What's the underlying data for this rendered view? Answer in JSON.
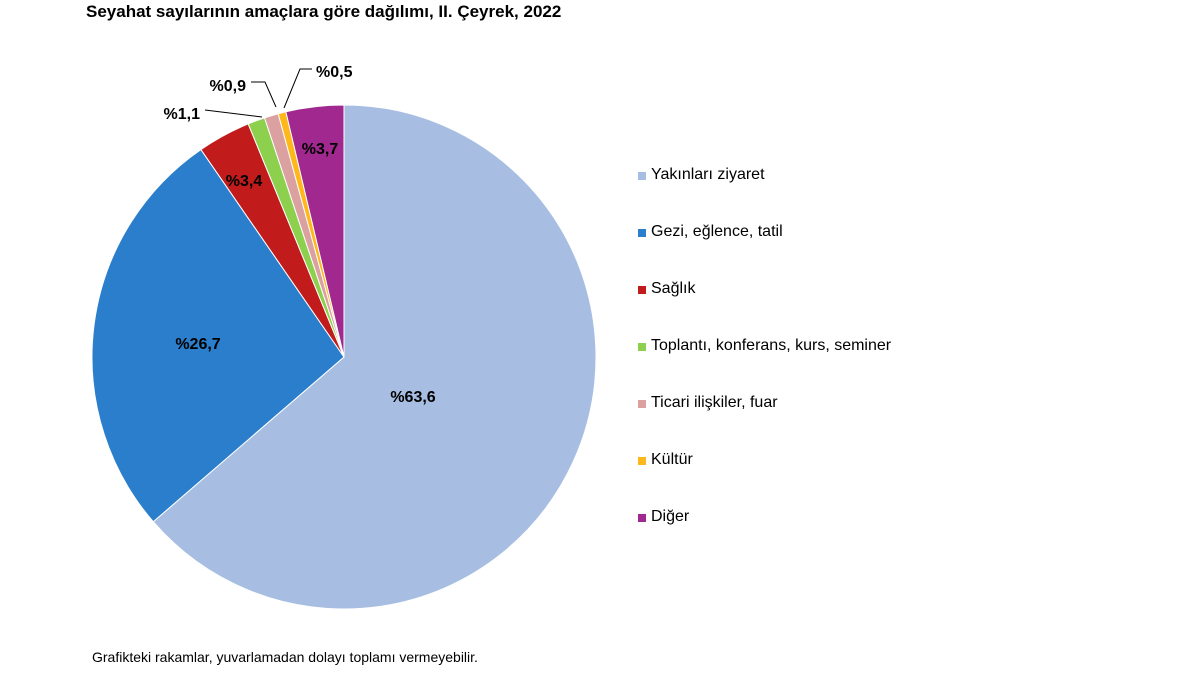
{
  "chart_data": {
    "type": "pie",
    "title": "Seyahat sayılarının amaçlara göre dağılımı, II. Çeyrek, 2022",
    "slices": [
      {
        "name": "Yakınları ziyaret",
        "value": 63.6,
        "label": "%63,6",
        "color": "#A7BEE2"
      },
      {
        "name": "Gezi, eğlence, tatil",
        "value": 26.7,
        "label": "%26,7",
        "color": "#2B7ECB"
      },
      {
        "name": "Sağlık",
        "value": 3.4,
        "label": "%3,4",
        "color": "#C21B1B"
      },
      {
        "name": "Toplantı, konferans, kurs, seminer",
        "value": 1.1,
        "label": "%1,1",
        "color": "#8CD04E"
      },
      {
        "name": "Ticari ilişkiler, fuar",
        "value": 0.9,
        "label": "%0,9",
        "color": "#DBA0A0"
      },
      {
        "name": "Kültür",
        "value": 0.5,
        "label": "%0,5",
        "color": "#FFB81C"
      },
      {
        "name": "Diğer",
        "value": 3.7,
        "label": "%3,7",
        "color": "#A0288E"
      }
    ],
    "start_angle": "12 o'clock",
    "direction": "clockwise",
    "legend_position": "right"
  },
  "footnote": "Grafikteki rakamlar, yuvarlamadan dolayı toplamı vermeyebilir."
}
